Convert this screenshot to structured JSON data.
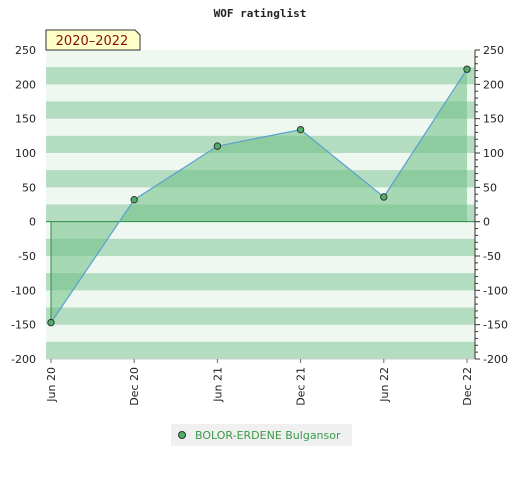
{
  "chart_data": {
    "type": "area",
    "title": "WOF ratinglist",
    "range_label": "2020–2022",
    "x": [
      "Jun 20",
      "Dec 20",
      "Jun 21",
      "Dec 21",
      "Jun 22",
      "Dec 22"
    ],
    "ylim": [
      -200,
      250
    ],
    "yticks": [
      -200,
      -150,
      -100,
      -50,
      0,
      50,
      100,
      150,
      200,
      250
    ],
    "y_axis_both_sides": true,
    "grid": "horizontal bands",
    "legend_position": "bottom",
    "series": [
      {
        "name": "BOLOR-ERDENE Bulgansor",
        "values": [
          -147,
          32,
          110,
          134,
          36,
          222
        ]
      }
    ],
    "colors": {
      "line": "#5aa0d0",
      "fill": "#6cbf84",
      "marker_fill": "#4fb06a",
      "band_dark": "#b3dcc0",
      "band_light": "#eef7f0",
      "range_bg": "#ffffc8"
    }
  }
}
